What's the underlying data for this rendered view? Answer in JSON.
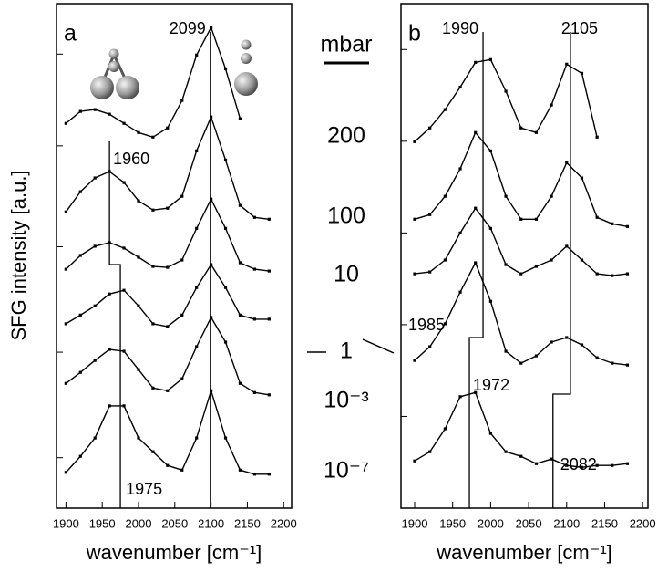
{
  "chart_data": [
    {
      "type": "line",
      "panel_label": "a",
      "ylabel": "SFG intensity [a.u.]",
      "xlabel": "wavenumber [cm⁻¹]",
      "color": "#000000",
      "xlim": [
        1887,
        2211
      ],
      "ylim": [
        0,
        11
      ],
      "xticks": [
        1900,
        1950,
        2000,
        2050,
        2100,
        2150,
        2200
      ],
      "yticks": [
        1.1,
        3.4,
        5.7,
        7.9,
        9.9
      ],
      "x": [
        1900,
        1920,
        1940,
        1960,
        1980,
        2000,
        2020,
        2040,
        2060,
        2080,
        2100,
        2120,
        2140,
        2160,
        2180
      ],
      "peaks": [
        2099,
        1960,
        1975
      ],
      "series": [
        {
          "values": [
            8.39,
            8.65,
            8.69,
            8.59,
            8.39,
            8.19,
            8.09,
            8.29,
            8.89,
            9.88,
            10.48,
            9.58,
            8.49,
            null,
            null
          ]
        },
        {
          "values": [
            6.46,
            6.9,
            7.2,
            7.34,
            7.1,
            6.7,
            6.5,
            6.54,
            6.8,
            7.79,
            8.53,
            7.59,
            6.6,
            6.34,
            6.3
          ]
        },
        {
          "values": [
            5.21,
            5.51,
            5.71,
            5.79,
            5.67,
            5.47,
            5.27,
            5.25,
            5.41,
            6.1,
            6.74,
            6.1,
            5.35,
            5.21,
            5.17
          ]
        },
        {
          "values": [
            4.02,
            4.21,
            4.41,
            4.67,
            4.75,
            4.41,
            4.02,
            3.96,
            4.21,
            4.81,
            5.31,
            4.81,
            4.21,
            4.12,
            4.12
          ]
        },
        {
          "values": [
            2.72,
            2.96,
            3.22,
            3.46,
            3.42,
            3.02,
            2.62,
            2.56,
            2.82,
            3.52,
            4.16,
            3.62,
            2.72,
            2.52,
            2.47
          ]
        },
        {
          "values": [
            0.78,
            1.13,
            1.53,
            2.23,
            2.23,
            1.53,
            1.23,
            0.93,
            0.83,
            1.53,
            2.56,
            1.53,
            0.83,
            0.74,
            0.74
          ]
        }
      ]
    },
    {
      "type": "line",
      "panel_label": "b",
      "xlabel": "wavenumber [cm⁻¹]",
      "color": "#000000",
      "xlim": [
        1882,
        2207
      ],
      "ylim": [
        0,
        11
      ],
      "xticks": [
        1900,
        1950,
        2000,
        2050,
        2100,
        2150,
        2200
      ],
      "yticks": [
        2,
        4,
        6,
        8,
        10
      ],
      "x": [
        1900,
        1920,
        1940,
        1960,
        1980,
        2000,
        2020,
        2040,
        2060,
        2080,
        2100,
        2120,
        2140,
        2160,
        2180
      ],
      "peaks": [
        1990,
        2105,
        1985,
        1972,
        2082
      ],
      "series": [
        {
          "values": [
            7.99,
            8.29,
            8.69,
            9.18,
            9.72,
            9.78,
            9.09,
            8.29,
            8.19,
            8.79,
            9.68,
            9.48,
            8.09,
            null,
            null
          ]
        },
        {
          "values": [
            6.3,
            6.4,
            6.8,
            7.4,
            8.19,
            7.79,
            6.8,
            6.3,
            6.3,
            6.8,
            7.53,
            7.2,
            6.34,
            6.2,
            6.14
          ]
        },
        {
          "values": [
            5.11,
            5.15,
            5.41,
            6.0,
            6.54,
            6.1,
            5.31,
            5.11,
            5.27,
            5.41,
            5.71,
            5.41,
            5.11,
            5.07,
            5.11
          ]
        },
        {
          "values": [
            3.22,
            3.52,
            4.02,
            4.71,
            5.35,
            4.51,
            3.42,
            3.16,
            3.32,
            3.62,
            3.72,
            3.56,
            3.28,
            3.16,
            3.12
          ]
        },
        {
          "values": [
            1.03,
            1.23,
            1.73,
            2.43,
            2.52,
            1.63,
            1.23,
            1.13,
            0.97,
            1.07,
            0.93,
            0.89,
            0.93,
            0.93,
            0.97
          ]
        }
      ]
    }
  ],
  "pressure_unit": "mbar",
  "pressures": [
    "200",
    "100",
    "10",
    "1",
    "10⁻³",
    "10⁻⁷"
  ]
}
